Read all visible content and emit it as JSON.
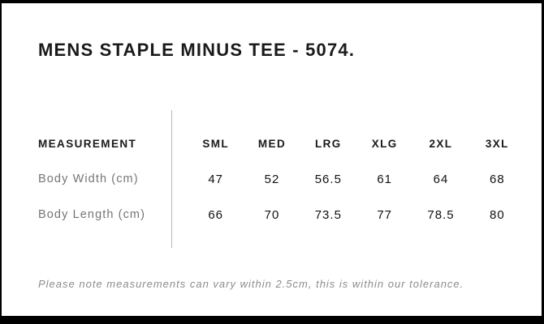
{
  "page": {
    "title": "MENS STAPLE MINUS TEE - 5074.",
    "note": "Please note measurements can vary within 2.5cm, this is within our tolerance."
  },
  "size_table": {
    "measurement_header": "MEASUREMENT",
    "columns": [
      "SML",
      "MED",
      "LRG",
      "XLG",
      "2XL",
      "3XL"
    ],
    "rows": [
      {
        "label": "Body Width (cm)",
        "values": [
          "47",
          "52",
          "56.5",
          "61",
          "64",
          "68"
        ]
      },
      {
        "label": "Body Length (cm)",
        "values": [
          "66",
          "70",
          "73.5",
          "77",
          "78.5",
          "80"
        ]
      }
    ]
  },
  "colors": {
    "frame": "#000000",
    "heading_text": "#1a1a1a",
    "muted_text": "#757575",
    "divider": "#b5b5b5"
  }
}
